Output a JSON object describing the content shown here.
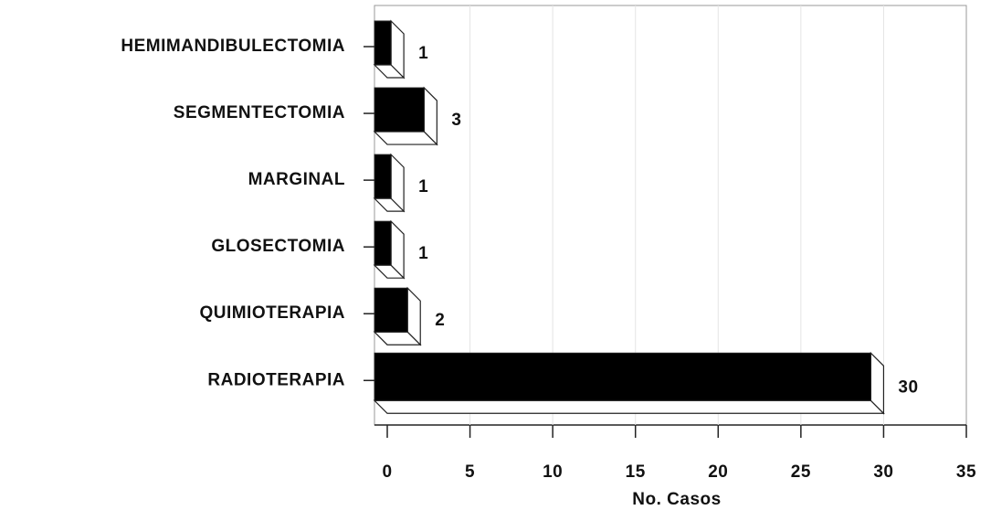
{
  "chart_data": {
    "type": "bar",
    "orientation": "horizontal",
    "categories": [
      "HEMIMANDIBULECTOMIA",
      "SEGMENTECTOMIA",
      "MARGINAL",
      "GLOSECTOMIA",
      "QUIMIOTERAPIA",
      "RADIOTERAPIA"
    ],
    "values": [
      1,
      3,
      1,
      1,
      2,
      30
    ],
    "color": "#000000",
    "x_label": "No. Casos",
    "xlim": [
      0,
      35
    ],
    "xticks": [
      0,
      5,
      10,
      15,
      20,
      25,
      30,
      35
    ]
  }
}
